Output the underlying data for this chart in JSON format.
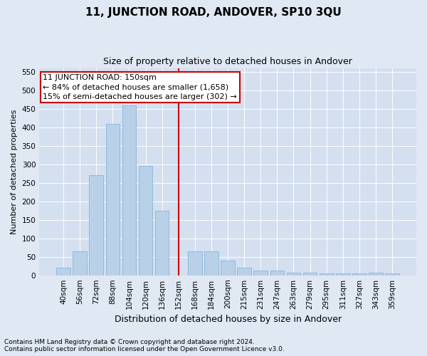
{
  "title": "11, JUNCTION ROAD, ANDOVER, SP10 3QU",
  "subtitle": "Size of property relative to detached houses in Andover",
  "xlabel": "Distribution of detached houses by size in Andover",
  "ylabel": "Number of detached properties",
  "categories": [
    "40sqm",
    "56sqm",
    "72sqm",
    "88sqm",
    "104sqm",
    "120sqm",
    "136sqm",
    "152sqm",
    "168sqm",
    "184sqm",
    "200sqm",
    "215sqm",
    "231sqm",
    "247sqm",
    "263sqm",
    "279sqm",
    "295sqm",
    "311sqm",
    "327sqm",
    "343sqm",
    "359sqm"
  ],
  "values": [
    20,
    65,
    270,
    410,
    460,
    295,
    175,
    0,
    65,
    65,
    40,
    20,
    13,
    13,
    7,
    7,
    5,
    5,
    5,
    7,
    5
  ],
  "bar_color": "#b8d0e8",
  "bar_edge_color": "#7aafd4",
  "vline_color": "#cc0000",
  "vline_index": 7,
  "annotation_text": "11 JUNCTION ROAD: 150sqm\n← 84% of detached houses are smaller (1,658)\n15% of semi-detached houses are larger (302) →",
  "annotation_box_facecolor": "#ffffff",
  "annotation_box_edgecolor": "#cc0000",
  "background_color": "#e0e8f4",
  "plot_bg_color": "#d4dff0",
  "grid_color": "#ffffff",
  "footer": "Contains HM Land Registry data © Crown copyright and database right 2024.\nContains public sector information licensed under the Open Government Licence v3.0.",
  "ylim": [
    0,
    560
  ],
  "yticks": [
    0,
    50,
    100,
    150,
    200,
    250,
    300,
    350,
    400,
    450,
    500,
    550
  ],
  "title_fontsize": 11,
  "subtitle_fontsize": 9,
  "xlabel_fontsize": 9,
  "ylabel_fontsize": 8,
  "tick_fontsize": 7.5,
  "annotation_fontsize": 8,
  "footer_fontsize": 6.5
}
